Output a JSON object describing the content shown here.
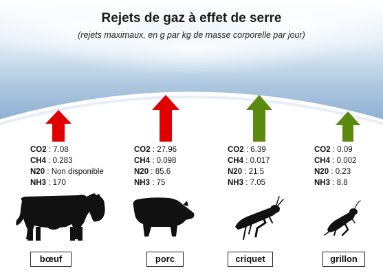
{
  "chart_data": {
    "type": "table",
    "title": "Rejets de gaz à effet de serre",
    "subtitle": "(rejets maximaux, en g par kg de masse corporelle par jour)",
    "gas_labels": [
      "CO2",
      "CH4",
      "N20",
      "NH3"
    ],
    "animals": [
      {
        "name": "bœuf",
        "arrow_color": "#e00000",
        "values": {
          "CO2": "7.08",
          "CH4": "0.283",
          "N20": "Non disponible",
          "NH3": "170"
        }
      },
      {
        "name": "porc",
        "arrow_color": "#e00000",
        "values": {
          "CO2": "27.96",
          "CH4": "0.098",
          "N20": "85.6",
          "NH3": "75"
        }
      },
      {
        "name": "criquet",
        "arrow_color": "#5a8a0e",
        "values": {
          "CO2": "6.39",
          "CH4": "0.017",
          "N20": "21.5",
          "NH3": "7.05"
        }
      },
      {
        "name": "grillon",
        "arrow_color": "#5a8a0e",
        "values": {
          "CO2": "0.09",
          "CH4": "0.002",
          "N20": "0.23",
          "NH3": "8.8"
        }
      }
    ]
  }
}
